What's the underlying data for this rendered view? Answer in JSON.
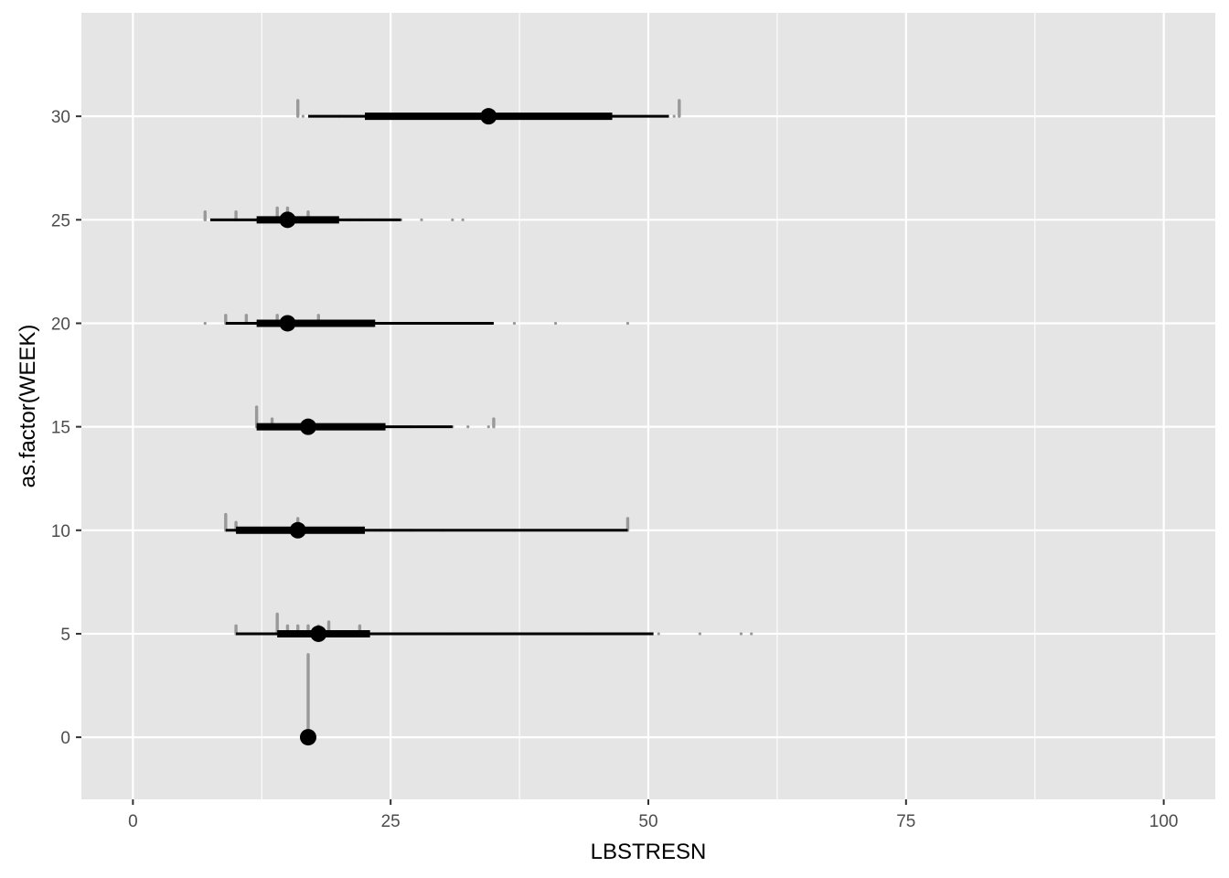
{
  "chart_data": {
    "type": "interval",
    "xlabel": "LBSTRESN",
    "ylabel": "as.factor(WEEK)",
    "xlim": [
      -5,
      105
    ],
    "ylim": [
      -3,
      35
    ],
    "x_ticks": [
      0,
      25,
      50,
      75,
      100
    ],
    "y_ticks": [
      0,
      5,
      10,
      15,
      20,
      25,
      30
    ],
    "x_tick_labels": [
      "0",
      "25",
      "50",
      "75",
      "100"
    ],
    "y_tick_labels": [
      "0",
      "5",
      "10",
      "15",
      "20",
      "25",
      "30"
    ],
    "grid": true,
    "colors": {
      "panel": "#e5e5e5",
      "grid": "#ffffff",
      "interval": "#000000",
      "dots": "#999999"
    },
    "intervals": [
      {
        "week": 0,
        "median": 17,
        "q_lo": 17,
        "q_hi": 17,
        "lo": 17,
        "hi": 17,
        "dots": [
          17,
          17,
          17,
          17,
          17,
          17,
          17,
          17,
          17,
          17,
          17,
          17,
          17,
          17,
          17,
          17,
          17,
          17,
          17,
          17,
          17
        ]
      },
      {
        "week": 5,
        "median": 18,
        "q_lo": 14,
        "q_hi": 23,
        "lo": 10,
        "hi": 50.5,
        "dots": [
          10,
          10,
          12.9,
          14,
          14,
          14,
          14,
          14,
          15,
          15,
          16,
          16,
          17,
          17,
          18,
          18,
          19,
          19,
          19,
          20,
          21,
          22,
          22,
          24,
          26,
          27,
          31,
          35,
          44,
          50.8,
          55,
          58.8,
          60
        ]
      },
      {
        "week": 10,
        "median": 16,
        "q_lo": 10,
        "q_hi": 22.5,
        "lo": 9,
        "hi": 48,
        "dots": [
          9,
          9,
          9,
          9,
          10,
          10,
          13,
          15,
          16,
          16,
          16,
          17,
          18,
          20,
          21,
          24,
          27,
          30,
          37,
          48,
          48,
          48
        ]
      },
      {
        "week": 15,
        "median": 17,
        "q_lo": 12,
        "q_hi": 24.5,
        "lo": 12,
        "hi": 31,
        "dots": [
          12,
          12,
          12,
          12,
          12,
          13.4,
          13.4,
          16,
          18,
          22,
          25,
          27,
          31,
          32.6,
          34.6,
          35,
          35
        ]
      },
      {
        "week": 20,
        "median": 15,
        "q_lo": 12,
        "q_hi": 23.5,
        "lo": 9,
        "hi": 35,
        "dots": [
          7,
          9,
          9,
          11,
          11,
          12,
          13,
          14,
          14,
          15,
          16,
          17,
          18,
          18,
          19,
          20,
          22,
          23,
          25,
          29,
          33,
          37.2,
          41.2,
          48
        ]
      },
      {
        "week": 25,
        "median": 15,
        "q_lo": 12,
        "q_hi": 20,
        "lo": 7.5,
        "hi": 26,
        "dots": [
          7,
          7,
          10,
          10,
          13,
          14,
          14,
          14,
          15,
          15,
          15,
          16,
          17,
          17,
          18,
          19,
          20,
          21,
          22,
          24,
          26,
          28,
          30.8,
          32
        ]
      },
      {
        "week": 30,
        "median": 34.5,
        "q_lo": 22.5,
        "q_hi": 46.5,
        "lo": 17,
        "hi": 52,
        "dots": [
          16,
          16,
          16,
          16,
          16.5,
          20,
          28,
          40,
          52.5,
          53,
          53,
          53,
          53
        ]
      }
    ]
  }
}
